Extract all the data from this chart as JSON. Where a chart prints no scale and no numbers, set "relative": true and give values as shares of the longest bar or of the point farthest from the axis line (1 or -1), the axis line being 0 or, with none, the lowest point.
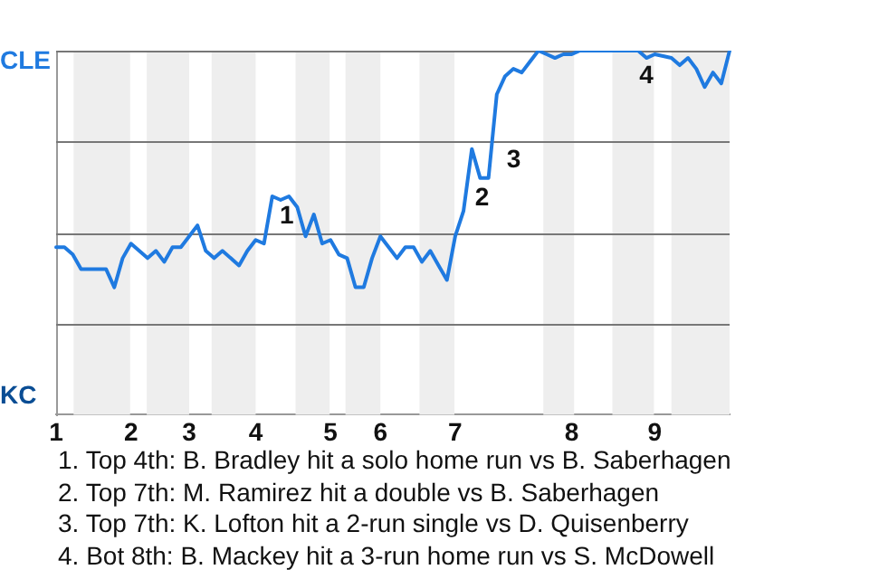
{
  "chart_data": {
    "type": "line",
    "relative": true,
    "grid": "y",
    "legend": false,
    "marker": "none",
    "line_style": "solid",
    "categories": [
      "1",
      null,
      null,
      null,
      null,
      null,
      null,
      null,
      null,
      "2",
      null,
      null,
      null,
      null,
      null,
      null,
      "3",
      null,
      null,
      null,
      null,
      null,
      null,
      null,
      "4",
      null,
      null,
      null,
      null,
      null,
      null,
      null,
      null,
      "5",
      null,
      null,
      null,
      null,
      null,
      "6",
      null,
      null,
      null,
      null,
      null,
      null,
      null,
      null,
      "7",
      null,
      null,
      null,
      null,
      null,
      null,
      null,
      null,
      null,
      null,
      null,
      null,
      null,
      "8",
      null,
      null,
      null,
      null,
      null,
      null,
      null,
      null,
      null,
      "9",
      null,
      null,
      null,
      null,
      null,
      null,
      null,
      null,
      null
    ],
    "series": [
      {
        "color": "#1f7ae0",
        "values": [
          0.46,
          0.46,
          0.44,
          0.4,
          0.4,
          0.4,
          0.4,
          0.35,
          0.43,
          0.47,
          0.45,
          0.43,
          0.45,
          0.42,
          0.46,
          0.46,
          0.49,
          0.52,
          0.45,
          0.43,
          0.45,
          0.43,
          0.41,
          0.45,
          0.48,
          0.47,
          0.6,
          0.59,
          0.6,
          0.57,
          0.49,
          0.55,
          0.47,
          0.48,
          0.44,
          0.43,
          0.35,
          0.35,
          0.43,
          0.49,
          0.46,
          0.43,
          0.46,
          0.46,
          0.42,
          0.45,
          0.41,
          0.37,
          0.49,
          0.56,
          0.73,
          0.65,
          0.65,
          0.88,
          0.93,
          0.95,
          0.94,
          0.97,
          1,
          0.99,
          0.98,
          0.99,
          0.99,
          1,
          1,
          1,
          1,
          1,
          1,
          1,
          1,
          0.98,
          0.99,
          0.985,
          0.98,
          0.96,
          0.98,
          0.95,
          0.9,
          0.94,
          0.91,
          1
        ]
      }
    ],
    "annotations": [
      "CLE",
      "KC",
      "1",
      "2",
      "3",
      "4",
      "1. Top 4th: B. Bradley hit a solo home run vs B. Saberhagen",
      "2. Top 7th: M. Ramirez hit a double vs B. Saberhagen",
      "3. Top 7th: K. Lofton hit a 2-run single vs D. Quisenberry",
      "4. Bot 8th: B. Mackey hit a 3-run home run vs S. McDowell"
    ]
  }
}
